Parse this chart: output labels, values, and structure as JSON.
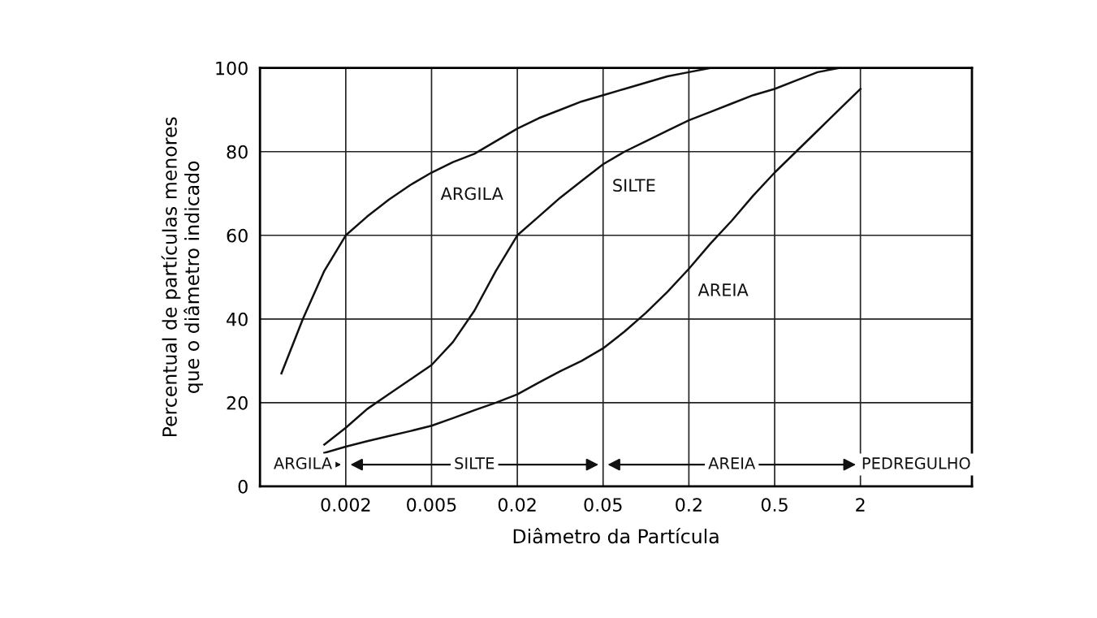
{
  "chart_data": {
    "type": "line",
    "xlabel": "Diâmetro da Partícula",
    "ylabel": "Percentual de partículas menores\nque o diâmetro indicado",
    "categories": [
      null,
      null,
      null,
      null,
      "0.002",
      null,
      null,
      null,
      "0.005",
      null,
      null,
      null,
      "0.02",
      null,
      null,
      null,
      "0.05",
      null,
      null,
      null,
      "0.2",
      null,
      null,
      null,
      "0.5",
      null,
      null,
      null,
      "2",
      null,
      null,
      null,
      null
    ],
    "ylim": [
      0,
      100
    ],
    "yticks": [
      0,
      20,
      40,
      60,
      80,
      100
    ],
    "grid": true,
    "marker": "none",
    "line_style": "solid",
    "series": [
      {
        "name": "ARGILA",
        "color": "#111111",
        "values": [
          null,
          27,
          40,
          51.5,
          60,
          64.5,
          68.5,
          72,
          75,
          77.5,
          79.5,
          82.5,
          85.5,
          88,
          90,
          92,
          93.5,
          95,
          96.5,
          98,
          99,
          100,
          null,
          null,
          null,
          null,
          null,
          null,
          null,
          null,
          null,
          null,
          null
        ]
      },
      {
        "name": "SILTE",
        "color": "#111111",
        "values": [
          null,
          null,
          null,
          10,
          14,
          18.5,
          22,
          25.5,
          29,
          34.5,
          42,
          51.5,
          60,
          64.5,
          69,
          73,
          77,
          80,
          82.5,
          85,
          87.5,
          89.5,
          91.5,
          93.5,
          95,
          97,
          99,
          100,
          null,
          null,
          null,
          null,
          null
        ]
      },
      {
        "name": "AREIA",
        "color": "#111111",
        "values": [
          null,
          null,
          null,
          8,
          9.5,
          10.8,
          12,
          13.2,
          14.5,
          16.3,
          18.2,
          20,
          22,
          24.8,
          27.5,
          30,
          33,
          37,
          41.5,
          46.5,
          52,
          58,
          63.5,
          69.5,
          75,
          80,
          85,
          90,
          95,
          null,
          null,
          null,
          null
        ]
      }
    ],
    "annotations": [
      "ARGILA",
      "SILTE",
      "AREIA",
      "PEDREGULHO"
    ]
  }
}
